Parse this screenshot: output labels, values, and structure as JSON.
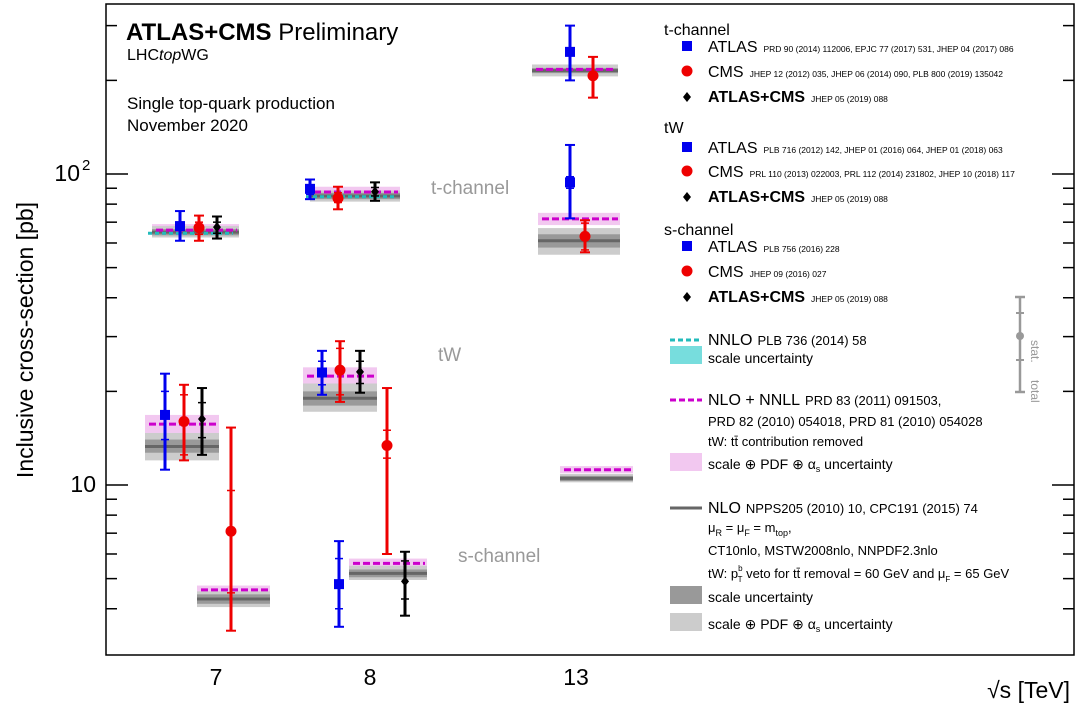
{
  "chart_data": {
    "type": "scatter",
    "header": {
      "main": "ATLAS+CMS",
      "suffix": "Preliminary",
      "wg_pre": "LHC",
      "wg_it": "top",
      "wg_post": "WG"
    },
    "process": "Single top-quark production",
    "date": "November 2020",
    "ylabel": "Inclusive cross-section [pb]",
    "xlabel": "√s [TeV]",
    "yscale": "log",
    "ylim": [
      3.4,
      300
    ],
    "x_categories": [
      "7",
      "8",
      "13"
    ],
    "ytick_labels": {
      "ten": "10",
      "hundred_base": "10",
      "hundred_exp": "2"
    },
    "channel_labels": {
      "t": "t-channel",
      "tw": "tW",
      "s": "s-channel"
    },
    "colors": {
      "ATLAS": "#0000ee",
      "CMS": "#ee0000",
      "COMB": "#000000",
      "nnlo": "#22bbbb",
      "nnlo_band": "#77dddd",
      "nlonnll": "#cc00cc",
      "nlonnll_band": "#f2c8f0",
      "nlo": "#666666",
      "nlo_scale": "#999999",
      "nlo_total": "#cccccc",
      "stat": "#999999"
    },
    "measurements": [
      {
        "channel": "t",
        "energy": "7",
        "exp": "ATLAS",
        "value": 68,
        "stat": [
          66,
          70
        ],
        "total": [
          61,
          76
        ]
      },
      {
        "channel": "t",
        "energy": "7",
        "exp": "CMS",
        "value": 67.2,
        "stat": [
          64,
          70
        ],
        "total": [
          61,
          73.5
        ]
      },
      {
        "channel": "t",
        "energy": "7",
        "exp": "COMB",
        "value": 67.5,
        "stat": [
          64.5,
          70
        ],
        "total": [
          62,
          73
        ]
      },
      {
        "channel": "t",
        "energy": "8",
        "exp": "ATLAS",
        "value": 89.6,
        "stat": [
          86,
          92
        ],
        "total": [
          83,
          96
        ]
      },
      {
        "channel": "t",
        "energy": "8",
        "exp": "CMS",
        "value": 83.6,
        "stat": [
          81,
          87
        ],
        "total": [
          77,
          91
        ]
      },
      {
        "channel": "t",
        "energy": "8",
        "exp": "COMB",
        "value": 87.7,
        "stat": [
          85,
          90.5
        ],
        "total": [
          82,
          94
        ]
      },
      {
        "channel": "t",
        "energy": "13",
        "exp": "ATLAS",
        "value": 247,
        "stat": [
          240,
          254
        ],
        "total": [
          200,
          300
        ]
      },
      {
        "channel": "t",
        "energy": "13",
        "exp": "CMS",
        "value": 207,
        "stat": [
          203,
          211
        ],
        "total": [
          176,
          238
        ]
      },
      {
        "channel": "tw",
        "energy": "7",
        "exp": "ATLAS",
        "value": 16.8,
        "stat": [
          14,
          20
        ],
        "total": [
          11.2,
          22.8
        ]
      },
      {
        "channel": "tw",
        "energy": "7",
        "exp": "CMS",
        "value": 16,
        "stat": [
          12.5,
          19.5
        ],
        "total": [
          12,
          21
        ]
      },
      {
        "channel": "tw",
        "energy": "7",
        "exp": "COMB",
        "value": 16.3,
        "stat": [
          14.2,
          18.4
        ],
        "total": [
          12.5,
          20.5
        ]
      },
      {
        "channel": "tw",
        "energy": "8",
        "exp": "ATLAS",
        "value": 23,
        "stat": [
          21,
          25
        ],
        "total": [
          19.5,
          27
        ]
      },
      {
        "channel": "tw",
        "energy": "8",
        "exp": "CMS",
        "value": 23.4,
        "stat": [
          19.5,
          27.5
        ],
        "total": [
          18.5,
          29
        ]
      },
      {
        "channel": "tw",
        "energy": "8",
        "exp": "COMB",
        "value": 23.1,
        "stat": [
          21.2,
          25
        ],
        "total": [
          19.8,
          27
        ]
      },
      {
        "channel": "tw",
        "energy": "13",
        "exp": "ATLAS",
        "value": 94,
        "stat": [
          90,
          98
        ],
        "total": [
          72,
          124
        ]
      },
      {
        "channel": "tw",
        "energy": "13",
        "exp": "CMS",
        "value": 63,
        "stat": [
          57,
          69.5
        ],
        "total": [
          56,
          71
        ]
      },
      {
        "channel": "s",
        "energy": "7",
        "exp": "CMS",
        "value": 7.1,
        "stat": [
          4.5,
          9.6
        ],
        "total": [
          3.4,
          15.3
        ]
      },
      {
        "channel": "s",
        "energy": "8",
        "exp": "ATLAS",
        "value": 4.8,
        "stat": [
          4.0,
          5.8
        ],
        "total": [
          3.5,
          6.6
        ]
      },
      {
        "channel": "s",
        "energy": "8",
        "exp": "CMS",
        "value": 13.4,
        "stat": [
          12.2,
          15
        ],
        "total": [
          6,
          20.5
        ]
      },
      {
        "channel": "s",
        "energy": "8",
        "exp": "COMB",
        "value": 4.9,
        "stat": [
          4.3,
          5.7
        ],
        "total": [
          3.8,
          6.1
        ]
      }
    ],
    "theory": [
      {
        "channel": "t",
        "energy": "7",
        "nnlo": 64.5,
        "nlonnll": 66,
        "nlonnll_band": [
          63.5,
          69
        ],
        "nlo": 65,
        "nlo_scale": [
          63.5,
          66.5
        ],
        "nlo_total": [
          62.5,
          68
        ]
      },
      {
        "channel": "t",
        "energy": "8",
        "nnlo": 84.5,
        "nlonnll": 87.5,
        "nlonnll_band": [
          84.5,
          91
        ],
        "nlo": 85,
        "nlo_scale": [
          83,
          87
        ],
        "nlo_total": [
          81.5,
          88.5
        ]
      },
      {
        "channel": "t",
        "energy": "13",
        "nlonnll": 217,
        "nlonnll_band": [
          212,
          222
        ],
        "nlo": 215,
        "nlo_scale": [
          211,
          219
        ],
        "nlo_total": [
          206,
          225
        ]
      },
      {
        "channel": "tw",
        "energy": "7",
        "nlonnll": 15.7,
        "nlonnll_band": [
          14.7,
          16.8
        ],
        "nlo": 13.3,
        "nlo_scale": [
          12.7,
          14
        ],
        "nlo_total": [
          12,
          14.7
        ]
      },
      {
        "channel": "tw",
        "energy": "8",
        "nlonnll": 22.4,
        "nlonnll_band": [
          21,
          23.9
        ],
        "nlo": 19,
        "nlo_scale": [
          18,
          20
        ],
        "nlo_total": [
          17.2,
          21.2
        ]
      },
      {
        "channel": "tw",
        "energy": "13",
        "nlonnll": 71.7,
        "nlonnll_band": [
          68.5,
          75
        ],
        "nlo": 61,
        "nlo_scale": [
          58,
          64
        ],
        "nlo_total": [
          55,
          67
        ]
      },
      {
        "channel": "s",
        "energy": "7",
        "nlonnll": 4.6,
        "nlonnll_band": [
          4.45,
          4.75
        ],
        "nlo": 4.3,
        "nlo_scale": [
          4.15,
          4.45
        ],
        "nlo_total": [
          4.05,
          4.55
        ]
      },
      {
        "channel": "s",
        "energy": "8",
        "nlonnll": 5.6,
        "nlonnll_band": [
          5.4,
          5.8
        ],
        "nlo": 5.2,
        "nlo_scale": [
          5.05,
          5.35
        ],
        "nlo_total": [
          4.95,
          5.5
        ]
      },
      {
        "channel": "s",
        "energy": "13",
        "nlonnll": 11.2,
        "nlonnll_band": [
          10.9,
          11.5
        ],
        "nlo": 10.5,
        "nlo_scale": [
          10.3,
          10.7
        ],
        "nlo_total": [
          10.2,
          10.85
        ]
      }
    ],
    "legend": {
      "groups": [
        {
          "title": "t-channel",
          "entries": [
            {
              "exp": "ATLAS",
              "name": "ATLAS",
              "ref": "PRD 90 (2014) 112006, EPJC 77 (2017) 531, JHEP 04 (2017) 086"
            },
            {
              "exp": "CMS",
              "name": "CMS",
              "ref": "JHEP 12 (2012) 035, JHEP 06 (2014) 090, PLB 800 (2019) 135042"
            },
            {
              "exp": "COMB",
              "name": "ATLAS+CMS",
              "ref": "JHEP 05 (2019) 088"
            }
          ]
        },
        {
          "title": "tW",
          "entries": [
            {
              "exp": "ATLAS",
              "name": "ATLAS",
              "ref": "PLB 716 (2012) 142, JHEP 01 (2016) 064, JHEP 01 (2018) 063"
            },
            {
              "exp": "CMS",
              "name": "CMS",
              "ref": "PRL 110 (2013) 022003, PRL 112 (2014) 231802, JHEP 10 (2018) 117"
            },
            {
              "exp": "COMB",
              "name": "ATLAS+CMS",
              "ref": "JHEP 05 (2019) 088"
            }
          ]
        },
        {
          "title": "s-channel",
          "entries": [
            {
              "exp": "ATLAS",
              "name": "ATLAS",
              "ref": "PLB 756 (2016) 228"
            },
            {
              "exp": "CMS",
              "name": "CMS",
              "ref": "JHEP 09 (2016) 027"
            },
            {
              "exp": "COMB",
              "name": "ATLAS+CMS",
              "ref": "JHEP 05 (2019) 088"
            }
          ]
        }
      ],
      "nnlo": {
        "name": "NNLO",
        "ref": "PLB 736 (2014) 58",
        "band": "scale uncertainty"
      },
      "nlonnll": {
        "name": "NLO + NNLL",
        "ref1": "PRD 83 (2011) 091503,",
        "ref2": "PRD 82 (2010) 054018, PRD 81 (2010) 054028",
        "note": "tW: tt̄ contribution removed",
        "band": "scale ⊕ PDF ⊕ α",
        "band_sub": "s",
        "band_post": " uncertainty"
      },
      "nlo": {
        "name": "NLO",
        "ref": "NPPS205 (2010) 10, CPC191 (2015) 74",
        "mu_r": "R",
        "mu_f": "F",
        "m_sub": "top",
        "pdf": "CT10nlo, MSTW2008nlo, NNPDF2.3nlo",
        "veto_pre": "tW: p",
        "veto_sup": "b",
        "veto_sub": "T",
        "veto_mid": " veto for tt̄ removal = 60 GeV and μ",
        "veto_sub2": "F",
        "veto_post": " = 65 GeV",
        "scale_band": "scale uncertainty",
        "total_band": "scale ⊕ PDF ⊕ α",
        "total_sub": "s",
        "total_post": " uncertainty"
      },
      "stat_total": {
        "stat": "stat.",
        "total": "total"
      }
    }
  }
}
